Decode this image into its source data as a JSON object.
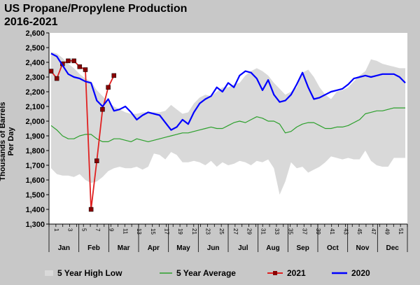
{
  "chart_data": {
    "type": "line",
    "title": "US Propane/Propylene Production",
    "subtitle": "2016-2021",
    "ylabel": "Thousands of Barrels Per Day",
    "xlabel": "",
    "ylim": [
      1300,
      2600
    ],
    "yticks": [
      "1,300",
      "1,400",
      "1,500",
      "1,600",
      "1,700",
      "1,800",
      "1,900",
      "2,000",
      "2,100",
      "2,200",
      "2,300",
      "2,400",
      "2,500",
      "2,600"
    ],
    "week_ticks": [
      "1",
      "3",
      "5",
      "7",
      "9",
      "11",
      "13",
      "15",
      "17",
      "19",
      "21",
      "23",
      "25",
      "27",
      "29",
      "31",
      "33",
      "35",
      "37",
      "39",
      "41",
      "43",
      "45",
      "47",
      "49",
      "51"
    ],
    "months": [
      "Jan",
      "Feb",
      "Mar",
      "Apr",
      "May",
      "Jun",
      "Jul",
      "Aug",
      "Sep",
      "Oct",
      "Nov",
      "Dec"
    ],
    "grid": false,
    "legend_position": "bottom",
    "series": [
      {
        "name": "5 Year High Low",
        "kind": "band",
        "color": "#d9d9d9",
        "high": [
          2470,
          2460,
          2430,
          2390,
          2360,
          2320,
          2290,
          2270,
          2210,
          2170,
          2130,
          2100,
          2080,
          2060,
          2050,
          2050,
          2060,
          2060,
          2060,
          2060,
          2070,
          2110,
          2080,
          2050,
          2060,
          2120,
          2160,
          2180,
          2170,
          2200,
          2230,
          2230,
          2250,
          2260,
          2310,
          2340,
          2360,
          2340,
          2310,
          2260,
          2220,
          2180,
          2200,
          2230,
          2330,
          2350,
          2300,
          2230,
          2180,
          2150,
          2200,
          2210,
          2230,
          2270,
          2310,
          2340,
          2420,
          2410,
          2390,
          2380,
          2370,
          2360,
          2360
        ],
        "low": [
          1680,
          1640,
          1630,
          1630,
          1620,
          1640,
          1600,
          1580,
          1590,
          1620,
          1660,
          1680,
          1690,
          1680,
          1680,
          1690,
          1670,
          1690,
          1780,
          1770,
          1740,
          1790,
          1770,
          1720,
          1720,
          1730,
          1720,
          1700,
          1730,
          1690,
          1720,
          1700,
          1710,
          1730,
          1720,
          1700,
          1730,
          1720,
          1740,
          1680,
          1500,
          1590,
          1720,
          1680,
          1690,
          1650,
          1670,
          1690,
          1720,
          1760,
          1750,
          1740,
          1750,
          1740,
          1740,
          1800,
          1730,
          1700,
          1690,
          1690,
          1750,
          1750,
          1750
        ]
      },
      {
        "name": "5 Year Average",
        "kind": "line",
        "color": "#2ca02c",
        "values": [
          1970,
          1940,
          1900,
          1880,
          1880,
          1900,
          1910,
          1910,
          1880,
          1860,
          1860,
          1880,
          1880,
          1870,
          1860,
          1880,
          1870,
          1860,
          1870,
          1880,
          1890,
          1900,
          1910,
          1920,
          1920,
          1930,
          1940,
          1950,
          1960,
          1950,
          1950,
          1970,
          1990,
          2000,
          1990,
          2010,
          2030,
          2020,
          2000,
          2000,
          1980,
          1920,
          1930,
          1960,
          1980,
          1990,
          1990,
          1970,
          1950,
          1950,
          1960,
          1960,
          1970,
          1990,
          2010,
          2050,
          2060,
          2070,
          2070,
          2080,
          2090,
          2090,
          2090
        ]
      },
      {
        "name": "2021",
        "kind": "line",
        "color": "#e02020",
        "marker": "#8b0000",
        "values": [
          2340,
          2290,
          2390,
          2410,
          2410,
          2370,
          2350,
          1400,
          1730,
          2080,
          2230,
          2310
        ]
      },
      {
        "name": "2020",
        "kind": "line",
        "color": "#0000ff",
        "values": [
          2460,
          2440,
          2380,
          2320,
          2300,
          2290,
          2270,
          2260,
          2140,
          2100,
          2150,
          2070,
          2080,
          2100,
          2060,
          2010,
          2040,
          2060,
          2050,
          2040,
          1990,
          1940,
          1960,
          2010,
          1980,
          2060,
          2120,
          2150,
          2170,
          2230,
          2200,
          2260,
          2230,
          2310,
          2340,
          2330,
          2290,
          2210,
          2280,
          2180,
          2130,
          2140,
          2180,
          2250,
          2330,
          2230,
          2150,
          2160,
          2180,
          2200,
          2210,
          2220,
          2250,
          2290,
          2300,
          2310,
          2300,
          2310,
          2320,
          2320,
          2320,
          2300,
          2260
        ]
      }
    ]
  },
  "legend": [
    {
      "label": "5 Year High Low"
    },
    {
      "label": "5 Year Average"
    },
    {
      "label": "2021"
    },
    {
      "label": "2020"
    }
  ]
}
